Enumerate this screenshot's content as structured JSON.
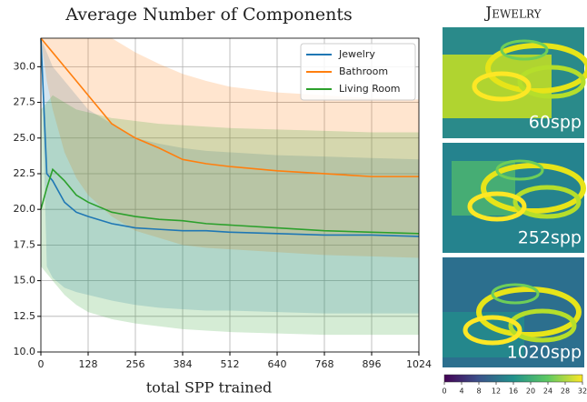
{
  "chart_data": [
    {
      "type": "line",
      "title": "Average Number of Components",
      "x_label": "total SPP trained",
      "x": [
        0,
        16,
        32,
        64,
        96,
        128,
        192,
        256,
        320,
        384,
        448,
        512,
        640,
        768,
        896,
        1024
      ],
      "xlim": [
        0,
        1024
      ],
      "xticks": [
        0,
        128,
        256,
        384,
        512,
        640,
        768,
        896,
        1024
      ],
      "ylim": [
        10,
        32
      ],
      "yticks": [
        {
          "value": 10,
          "label": "10.0"
        },
        {
          "value": 12.5,
          "label": "12.5"
        },
        {
          "value": 15,
          "label": "15.0"
        },
        {
          "value": 17.5,
          "label": "17.5"
        },
        {
          "value": 20,
          "label": "20.0"
        },
        {
          "value": 22.5,
          "label": "22.5"
        },
        {
          "value": 25,
          "label": "25.0"
        },
        {
          "value": 27.5,
          "label": "27.5"
        },
        {
          "value": 30,
          "label": "30.0"
        }
      ],
      "grid": true,
      "legend": "upper right",
      "series": [
        {
          "name": "Jewelry",
          "color": "#1f77b4",
          "values": [
            32,
            22.5,
            22,
            20.5,
            19.8,
            19.5,
            19,
            18.7,
            18.6,
            18.5,
            18.5,
            18.4,
            18.3,
            18.2,
            18.2,
            18.1
          ],
          "upper": [
            32,
            31,
            30,
            29,
            28,
            27,
            26,
            25,
            24.6,
            24.3,
            24.1,
            24,
            23.8,
            23.7,
            23.6,
            23.5
          ],
          "lower": [
            32,
            16,
            15.2,
            14.5,
            14.2,
            14,
            13.6,
            13.3,
            13.1,
            13,
            12.9,
            12.9,
            12.8,
            12.7,
            12.7,
            12.7
          ]
        },
        {
          "name": "Bathroom",
          "color": "#ff7f0e",
          "values": [
            32,
            31.5,
            31,
            30,
            29,
            28,
            26,
            25,
            24.3,
            23.5,
            23.2,
            23,
            22.7,
            22.5,
            22.3,
            22.3
          ],
          "upper": [
            32,
            32,
            32,
            32,
            32,
            32,
            32,
            31,
            30.2,
            29.5,
            29,
            28.6,
            28.2,
            28,
            27.8,
            27.7
          ],
          "lower": [
            32,
            29,
            27,
            24,
            22.2,
            21,
            19.5,
            18.5,
            18,
            17.5,
            17.3,
            17.2,
            17,
            16.8,
            16.7,
            16.6
          ]
        },
        {
          "name": "Living Room",
          "color": "#2ca02c",
          "values": [
            20,
            21.5,
            22.8,
            22,
            21,
            20.5,
            19.8,
            19.5,
            19.3,
            19.2,
            19,
            18.9,
            18.7,
            18.5,
            18.4,
            18.3
          ],
          "upper": [
            27,
            27.5,
            28,
            27.5,
            27,
            26.8,
            26.4,
            26.2,
            26,
            25.9,
            25.8,
            25.7,
            25.6,
            25.5,
            25.4,
            25.4
          ],
          "lower": [
            16,
            15.5,
            15,
            14,
            13.3,
            12.8,
            12.3,
            12,
            11.8,
            11.6,
            11.5,
            11.4,
            11.3,
            11.2,
            11.2,
            11.2
          ]
        }
      ]
    },
    {
      "type": "colorbar",
      "xlim": [
        0,
        32
      ],
      "xticks": [
        0,
        4,
        8,
        12,
        16,
        20,
        24,
        28,
        32
      ]
    }
  ],
  "figure": {
    "title": "Jewelry",
    "panels": [
      "60spp",
      "252spp",
      "1020spp"
    ]
  }
}
